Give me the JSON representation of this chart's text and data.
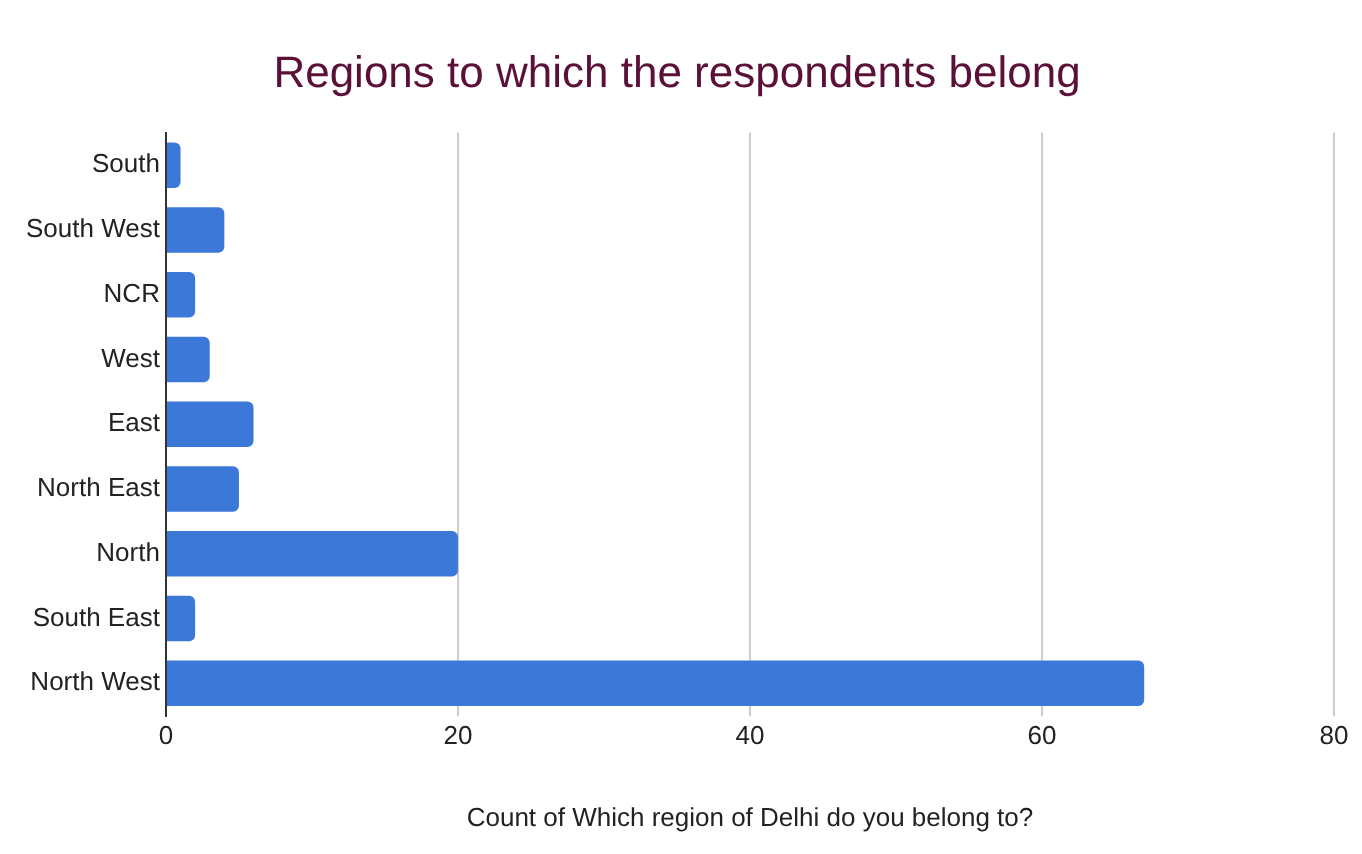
{
  "chart_data": {
    "type": "bar",
    "orientation": "horizontal",
    "title": "Regions to which the respondents belong",
    "xlabel": "Count of Which region of Delhi do you belong to?",
    "categories": [
      "South",
      "South West",
      "NCR",
      "West",
      "East",
      "North East",
      "North",
      "South East",
      "North West"
    ],
    "values": [
      1,
      4,
      2,
      3,
      6,
      5,
      20,
      2,
      67
    ],
    "color": "#3c78d8",
    "xlim": [
      0,
      80
    ],
    "xticks": [
      0,
      20,
      40,
      60,
      80
    ],
    "grid": "x",
    "legend": false
  }
}
